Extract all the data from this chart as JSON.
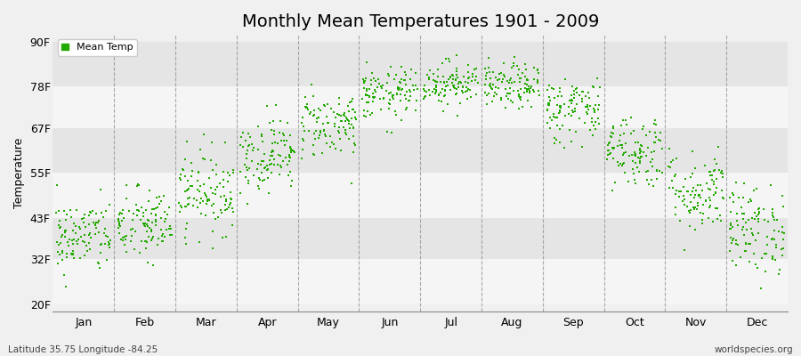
{
  "title": "Monthly Mean Temperatures 1901 - 2009",
  "ylabel": "Temperature",
  "yticks": [
    20,
    32,
    43,
    55,
    67,
    78,
    90
  ],
  "ytick_labels": [
    "20F",
    "32F",
    "43F",
    "55F",
    "67F",
    "78F",
    "90F"
  ],
  "ylim": [
    18,
    92
  ],
  "xlim": [
    0,
    12
  ],
  "months": [
    "Jan",
    "Feb",
    "Mar",
    "Apr",
    "May",
    "Jun",
    "Jul",
    "Aug",
    "Sep",
    "Oct",
    "Nov",
    "Dec"
  ],
  "month_tick_positions": [
    0.5,
    1.5,
    2.5,
    3.5,
    4.5,
    5.5,
    6.5,
    7.5,
    8.5,
    9.5,
    10.5,
    11.5
  ],
  "monthly_means": [
    38,
    41,
    50,
    60,
    68,
    76,
    79,
    78,
    72,
    61,
    50,
    40
  ],
  "monthly_stds": [
    5.0,
    5.0,
    5.5,
    5.0,
    4.5,
    3.5,
    3.0,
    3.0,
    4.5,
    5.0,
    5.5,
    6.0
  ],
  "n_years": 109,
  "dot_color": "#22AA00",
  "dot_size": 3,
  "background_color": "#f0f0f0",
  "band_colors": [
    "#f5f5f5",
    "#e5e5e5"
  ],
  "grid_line_color": "#888888",
  "title_fontsize": 14,
  "axis_fontsize": 9,
  "legend_label": "Mean Temp",
  "footer_left": "Latitude 35.75 Longitude -84.25",
  "footer_right": "worldspecies.org"
}
